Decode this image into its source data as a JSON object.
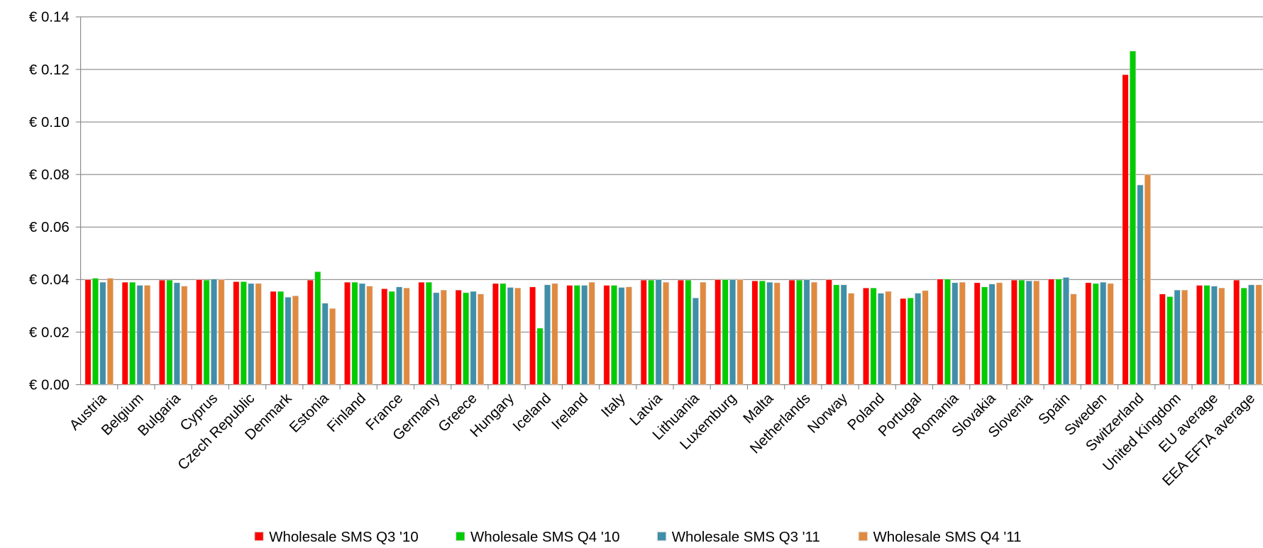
{
  "chart_data": {
    "type": "bar",
    "categories": [
      "Austria",
      "Belgium",
      "Bulgaria",
      "Cyprus",
      "Czech Republic",
      "Denmark",
      "Estonia",
      "Finland",
      "France",
      "Germany",
      "Greece",
      "Hungary",
      "Iceland",
      "Ireland",
      "Italy",
      "Latvia",
      "Lithuania",
      "Luxemburg",
      "Malta",
      "Netherlands",
      "Norway",
      "Poland",
      "Portugal",
      "Romania",
      "Slovakia",
      "Slovenia",
      "Spain",
      "Sweden",
      "Switzerland",
      "United Kingdom",
      "EU average",
      "EEA EFTA average"
    ],
    "series": [
      {
        "name": "Wholesale SMS Q3 '10",
        "color": "#ff0000",
        "values": [
          0.04,
          0.039,
          0.0398,
          0.04,
          0.0392,
          0.0355,
          0.0398,
          0.039,
          0.0365,
          0.039,
          0.036,
          0.0385,
          0.0372,
          0.0378,
          0.0378,
          0.0398,
          0.0398,
          0.04,
          0.0395,
          0.0398,
          0.04,
          0.0368,
          0.0328,
          0.0402,
          0.0388,
          0.0398,
          0.0402,
          0.0388,
          0.118,
          0.0345,
          0.0378,
          0.0398
        ]
      },
      {
        "name": "Wholesale SMS Q4 '10",
        "color": "#00cc00",
        "values": [
          0.0405,
          0.039,
          0.0398,
          0.0398,
          0.0392,
          0.0355,
          0.043,
          0.039,
          0.0355,
          0.039,
          0.035,
          0.0385,
          0.0215,
          0.0378,
          0.0378,
          0.0398,
          0.0398,
          0.04,
          0.0395,
          0.0398,
          0.038,
          0.0368,
          0.033,
          0.0402,
          0.0372,
          0.0398,
          0.0402,
          0.0385,
          0.127,
          0.0335,
          0.0378,
          0.0368
        ]
      },
      {
        "name": "Wholesale SMS Q3 '11",
        "color": "#3f8fa8",
        "values": [
          0.039,
          0.0378,
          0.0388,
          0.0402,
          0.0385,
          0.0333,
          0.031,
          0.0385,
          0.0372,
          0.035,
          0.0355,
          0.037,
          0.038,
          0.0378,
          0.037,
          0.04,
          0.033,
          0.04,
          0.039,
          0.04,
          0.038,
          0.0348,
          0.0348,
          0.0388,
          0.0383,
          0.0395,
          0.0408,
          0.039,
          0.076,
          0.036,
          0.0375,
          0.038
        ]
      },
      {
        "name": "Wholesale SMS Q4 '11",
        "color": "#e08a40",
        "values": [
          0.0405,
          0.0378,
          0.0375,
          0.04,
          0.0385,
          0.0338,
          0.029,
          0.0375,
          0.0368,
          0.036,
          0.0345,
          0.0368,
          0.0385,
          0.039,
          0.0372,
          0.039,
          0.039,
          0.04,
          0.0388,
          0.039,
          0.0348,
          0.0355,
          0.0358,
          0.039,
          0.0388,
          0.0395,
          0.0345,
          0.0385,
          0.08,
          0.036,
          0.0368,
          0.038
        ]
      }
    ],
    "ylim": [
      0,
      0.14
    ],
    "yticks": [
      {
        "value": 0,
        "label": "€ 0.00"
      },
      {
        "value": 0.02,
        "label": "€ 0.02"
      },
      {
        "value": 0.04,
        "label": "€ 0.04"
      },
      {
        "value": 0.06,
        "label": "€ 0.06"
      },
      {
        "value": 0.08,
        "label": "€ 0.08"
      },
      {
        "value": 0.1,
        "label": "€ 0.10"
      },
      {
        "value": 0.12,
        "label": "€ 0.12"
      },
      {
        "value": 0.14,
        "label": "€ 0.14"
      }
    ],
    "grid": true,
    "legend": "bottom"
  }
}
